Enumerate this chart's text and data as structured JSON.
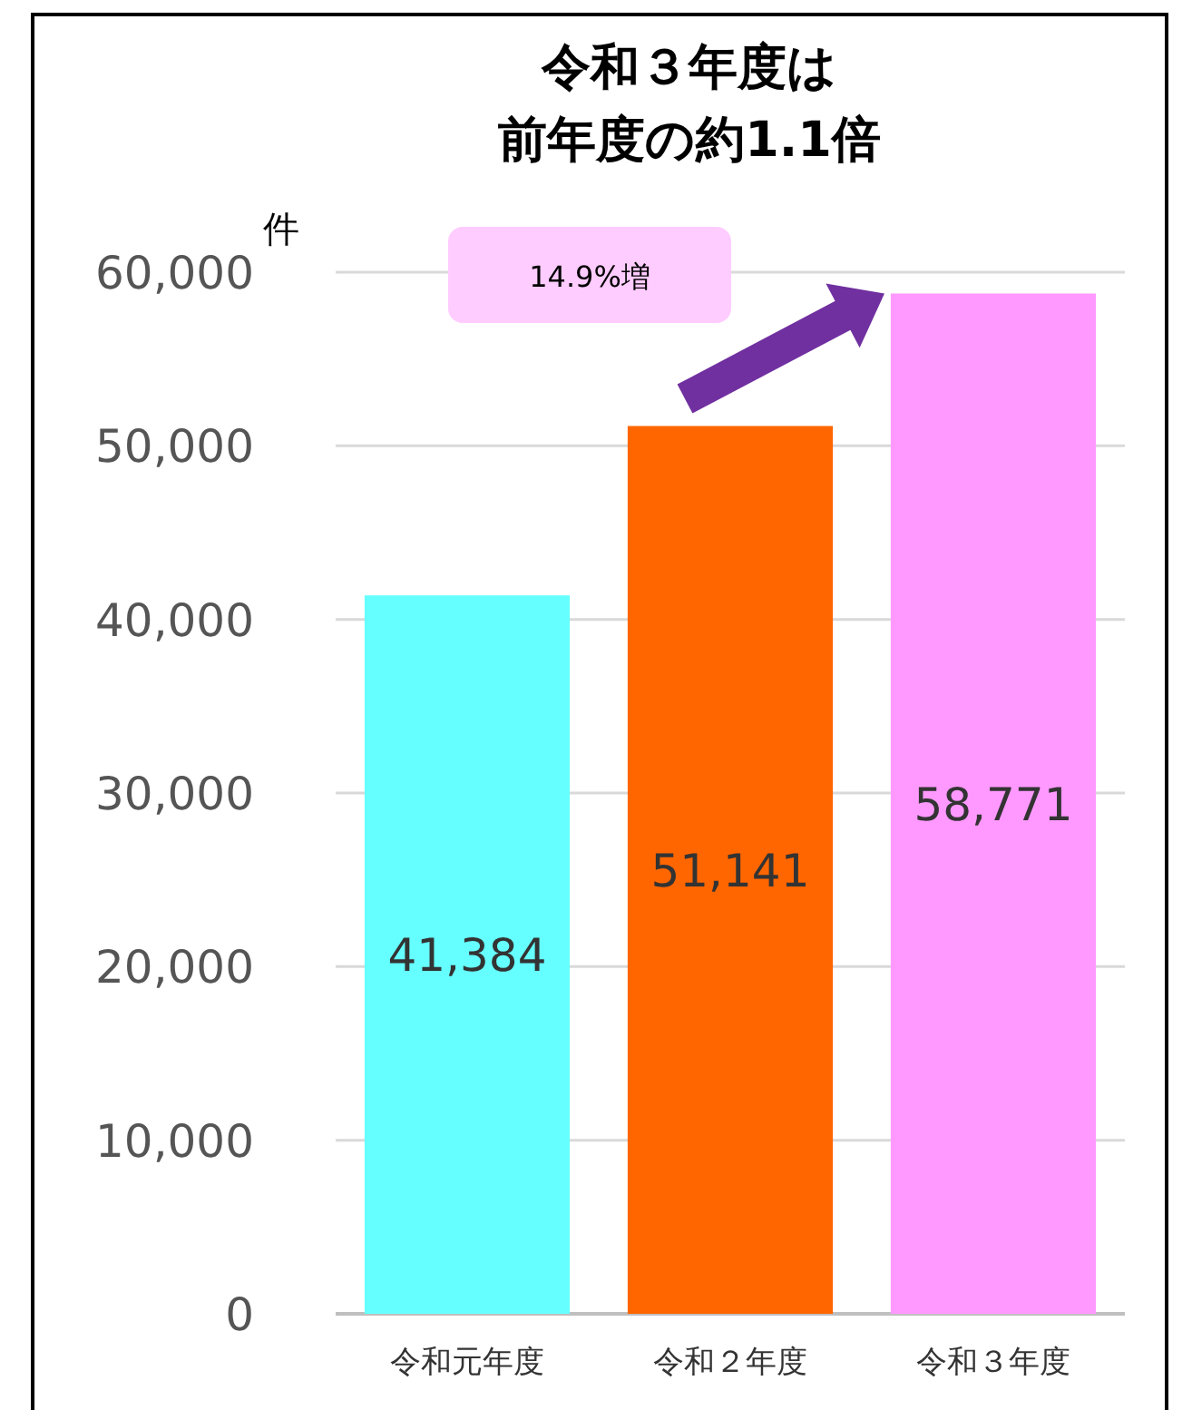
{
  "chart_data": {
    "type": "bar",
    "title": "令和３年度は",
    "subtitle": "前年度の約1.1倍",
    "ylabel": "件",
    "categories": [
      "令和元年度",
      "令和２年度",
      "令和３年度"
    ],
    "values": [
      41384,
      51141,
      58771
    ],
    "colors": [
      "#66ffff",
      "#ff6600",
      "#ff99ff"
    ],
    "value_labels": [
      "41,384",
      "51,141",
      "58,771"
    ],
    "ylim": [
      0,
      60000
    ],
    "yticks": [
      {
        "value": 0,
        "label": "0"
      },
      {
        "value": 10000,
        "label": "10,000"
      },
      {
        "value": 20000,
        "label": "20,000"
      },
      {
        "value": 30000,
        "label": "30,000"
      },
      {
        "value": 40000,
        "label": "40,000"
      },
      {
        "value": 50000,
        "label": "50,000"
      },
      {
        "value": 60000,
        "label": "60,000"
      }
    ],
    "grid": "y",
    "annotations": [
      "14.9%増"
    ]
  }
}
